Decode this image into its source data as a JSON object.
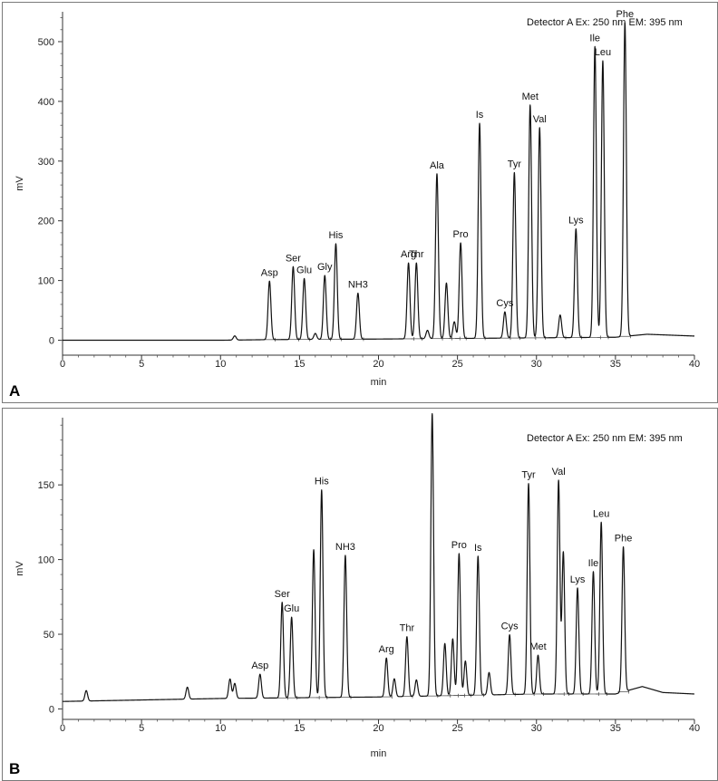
{
  "chart_data": [
    {
      "panel": "A",
      "type": "line",
      "xlabel": "min",
      "ylabel": "mV",
      "xlim": [
        0,
        40
      ],
      "ylim": [
        -25,
        550
      ],
      "xticks": [
        0,
        5,
        10,
        15,
        20,
        25,
        30,
        35,
        40
      ],
      "yticks": [
        0,
        100,
        200,
        300,
        400,
        500
      ],
      "annotation": "Detector A Ex: 250 nm EM: 395 nm",
      "baseline": [
        [
          0,
          0
        ],
        [
          5,
          0
        ],
        [
          10,
          0
        ],
        [
          13,
          1
        ],
        [
          20,
          2
        ],
        [
          25,
          3
        ],
        [
          30,
          4
        ],
        [
          35,
          5
        ],
        [
          37,
          10
        ],
        [
          40,
          7
        ]
      ],
      "peaks": [
        {
          "label": "",
          "t": 10.9,
          "height": 7
        },
        {
          "label": "Asp",
          "t": 13.1,
          "height": 98
        },
        {
          "label": "Ser",
          "t": 14.6,
          "height": 122
        },
        {
          "label": "Glu",
          "t": 15.3,
          "height": 102
        },
        {
          "label": "",
          "t": 16.0,
          "height": 10
        },
        {
          "label": "Gly",
          "t": 16.6,
          "height": 107
        },
        {
          "label": "His",
          "t": 17.3,
          "height": 160
        },
        {
          "label": "NH3",
          "t": 18.7,
          "height": 77
        },
        {
          "label": "Arg",
          "t": 21.9,
          "height": 127
        },
        {
          "label": "Thr",
          "t": 22.4,
          "height": 127
        },
        {
          "label": "",
          "t": 23.1,
          "height": 14
        },
        {
          "label": "Ala",
          "t": 23.7,
          "height": 276
        },
        {
          "label": "",
          "t": 24.3,
          "height": 93
        },
        {
          "label": "",
          "t": 24.8,
          "height": 28
        },
        {
          "label": "Pro",
          "t": 25.2,
          "height": 160
        },
        {
          "label": "Is",
          "t": 26.4,
          "height": 360
        },
        {
          "label": "Cys",
          "t": 28.0,
          "height": 44
        },
        {
          "label": "Tyr",
          "t": 28.6,
          "height": 277
        },
        {
          "label": "Met",
          "t": 29.6,
          "height": 390
        },
        {
          "label": "Val",
          "t": 30.2,
          "height": 352
        },
        {
          "label": "",
          "t": 31.5,
          "height": 38
        },
        {
          "label": "Lys",
          "t": 32.5,
          "height": 182
        },
        {
          "label": "Ile",
          "t": 33.7,
          "height": 487
        },
        {
          "label": "Leu",
          "t": 34.2,
          "height": 463
        },
        {
          "label": "Phe",
          "t": 35.6,
          "height": 525
        }
      ]
    },
    {
      "panel": "B",
      "type": "line",
      "xlabel": "min",
      "ylabel": "mV",
      "xlim": [
        0,
        40
      ],
      "ylim": [
        -7,
        195
      ],
      "xticks": [
        0,
        5,
        10,
        15,
        20,
        25,
        30,
        35,
        40
      ],
      "yticks": [
        0,
        50,
        100,
        150
      ],
      "annotation": "Detector A Ex: 250 nm EM: 395 nm",
      "baseline": [
        [
          0,
          5
        ],
        [
          5,
          6
        ],
        [
          10,
          7
        ],
        [
          20,
          8
        ],
        [
          25,
          9
        ],
        [
          30,
          10
        ],
        [
          35,
          10
        ],
        [
          36.7,
          15
        ],
        [
          38,
          11
        ],
        [
          40,
          10
        ]
      ],
      "peaks": [
        {
          "label": "",
          "t": 1.5,
          "height": 7
        },
        {
          "label": "",
          "t": 7.9,
          "height": 8
        },
        {
          "label": "",
          "t": 10.6,
          "height": 13
        },
        {
          "label": "",
          "t": 10.9,
          "height": 10
        },
        {
          "label": "Asp",
          "t": 12.5,
          "height": 16
        },
        {
          "label": "Ser",
          "t": 13.9,
          "height": 64
        },
        {
          "label": "Glu",
          "t": 14.5,
          "height": 54
        },
        {
          "label": "",
          "t": 15.9,
          "height": 99
        },
        {
          "label": "His",
          "t": 16.4,
          "height": 139
        },
        {
          "label": "NH3",
          "t": 17.9,
          "height": 95
        },
        {
          "label": "Arg",
          "t": 20.5,
          "height": 26
        },
        {
          "label": "",
          "t": 21.0,
          "height": 12
        },
        {
          "label": "Thr",
          "t": 21.8,
          "height": 40
        },
        {
          "label": "",
          "t": 22.4,
          "height": 11
        },
        {
          "label": "Ala",
          "t": 23.4,
          "height": 189
        },
        {
          "label": "",
          "t": 24.2,
          "height": 35
        },
        {
          "label": "",
          "t": 24.7,
          "height": 38
        },
        {
          "label": "Pro",
          "t": 25.1,
          "height": 95
        },
        {
          "label": "",
          "t": 25.5,
          "height": 23
        },
        {
          "label": "Is",
          "t": 26.3,
          "height": 93
        },
        {
          "label": "",
          "t": 27.0,
          "height": 15
        },
        {
          "label": "Cys",
          "t": 28.3,
          "height": 40
        },
        {
          "label": "Tyr",
          "t": 29.5,
          "height": 141
        },
        {
          "label": "Met",
          "t": 30.1,
          "height": 26
        },
        {
          "label": "Val",
          "t": 31.4,
          "height": 143
        },
        {
          "label": "",
          "t": 31.7,
          "height": 95
        },
        {
          "label": "Lys",
          "t": 32.6,
          "height": 71
        },
        {
          "label": "Ile",
          "t": 33.6,
          "height": 82
        },
        {
          "label": "Leu",
          "t": 34.1,
          "height": 115
        },
        {
          "label": "Phe",
          "t": 35.5,
          "height": 97
        }
      ]
    }
  ]
}
